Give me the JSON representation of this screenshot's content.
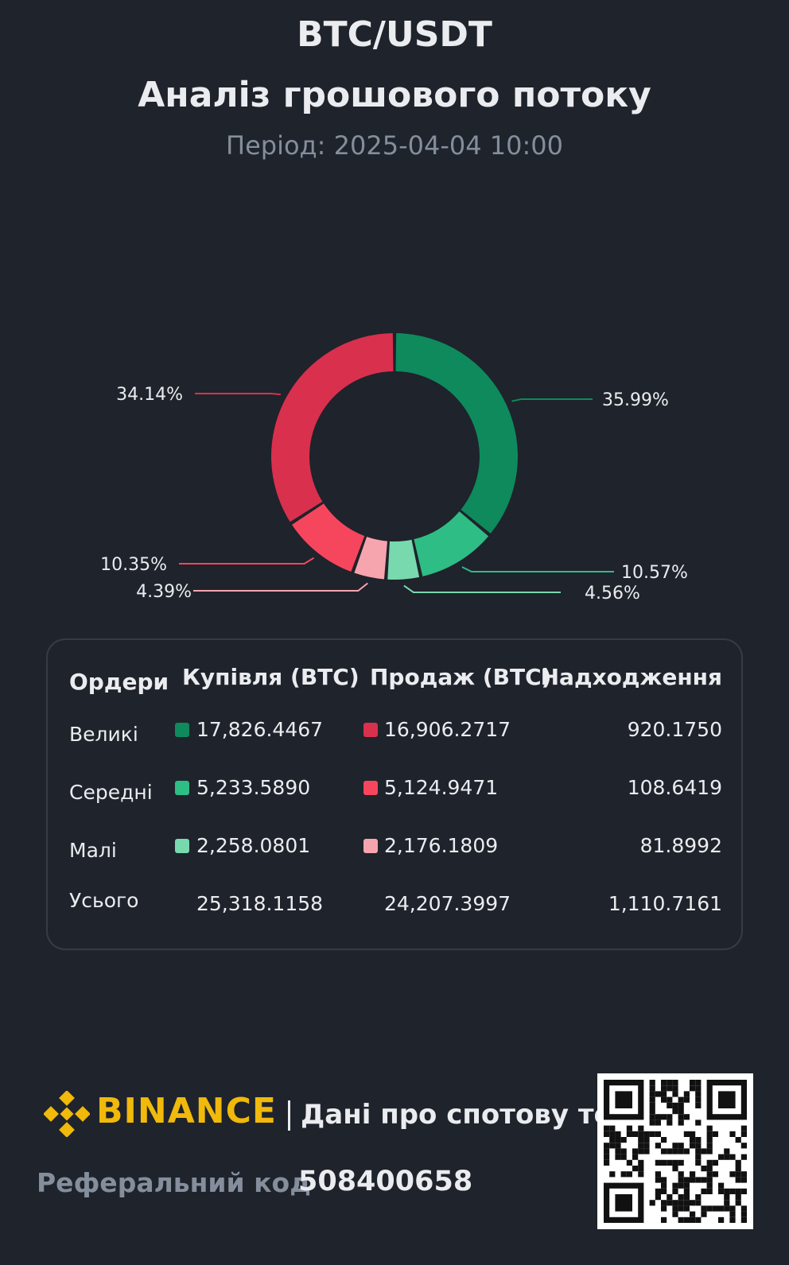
{
  "header": {
    "pair": "BTC/USDT",
    "title": "Аналіз грошового потоку",
    "period": "Період: 2025-04-04 10:00"
  },
  "chart_data": {
    "type": "pie",
    "donut": true,
    "slices": [
      {
        "label": "35.99%",
        "value": 35.99,
        "color": "#0e8a5c",
        "group": "buy-large"
      },
      {
        "label": "10.57%",
        "value": 10.57,
        "color": "#2ebd85",
        "group": "buy-medium"
      },
      {
        "label": "4.56%",
        "value": 4.56,
        "color": "#78d9ae",
        "group": "buy-small"
      },
      {
        "label": "4.39%",
        "value": 4.39,
        "color": "#f6a5ae",
        "group": "sell-small"
      },
      {
        "label": "10.35%",
        "value": 10.35,
        "color": "#f6465d",
        "group": "sell-medium"
      },
      {
        "label": "34.14%",
        "value": 34.14,
        "color": "#d9304e",
        "group": "sell-large"
      }
    ]
  },
  "table": {
    "headers": [
      "Ордери",
      "Купівля (BTC)",
      "Продаж (BTC)",
      "Надходження"
    ],
    "rows": [
      {
        "label": "Великі",
        "buy": "17,826.4467",
        "sell": "16,906.2717",
        "inflow": "920.1750",
        "buy_color": "#0e8a5c",
        "sell_color": "#d9304e"
      },
      {
        "label": "Середні",
        "buy": "5,233.5890",
        "sell": "5,124.9471",
        "inflow": "108.6419",
        "buy_color": "#2ebd85",
        "sell_color": "#f6465d"
      },
      {
        "label": "Малі",
        "buy": "2,258.0801",
        "sell": "2,176.1809",
        "inflow": "81.8992",
        "buy_color": "#78d9ae",
        "sell_color": "#f6a5ae"
      },
      {
        "label": "Усього",
        "buy": "25,318.1158",
        "sell": "24,207.3997",
        "inflow": "1,110.7161"
      }
    ]
  },
  "footer": {
    "brand": "BINANCE",
    "tagline": "Дані про спотову торгівлю",
    "ref_label": "Реферальний код",
    "ref_code": "508400658",
    "logo_icon": "binance-logo-icon",
    "qr_icon": "qr-code-icon"
  },
  "colors": {
    "background": "#1f232b",
    "brand": "#f0b90b"
  }
}
